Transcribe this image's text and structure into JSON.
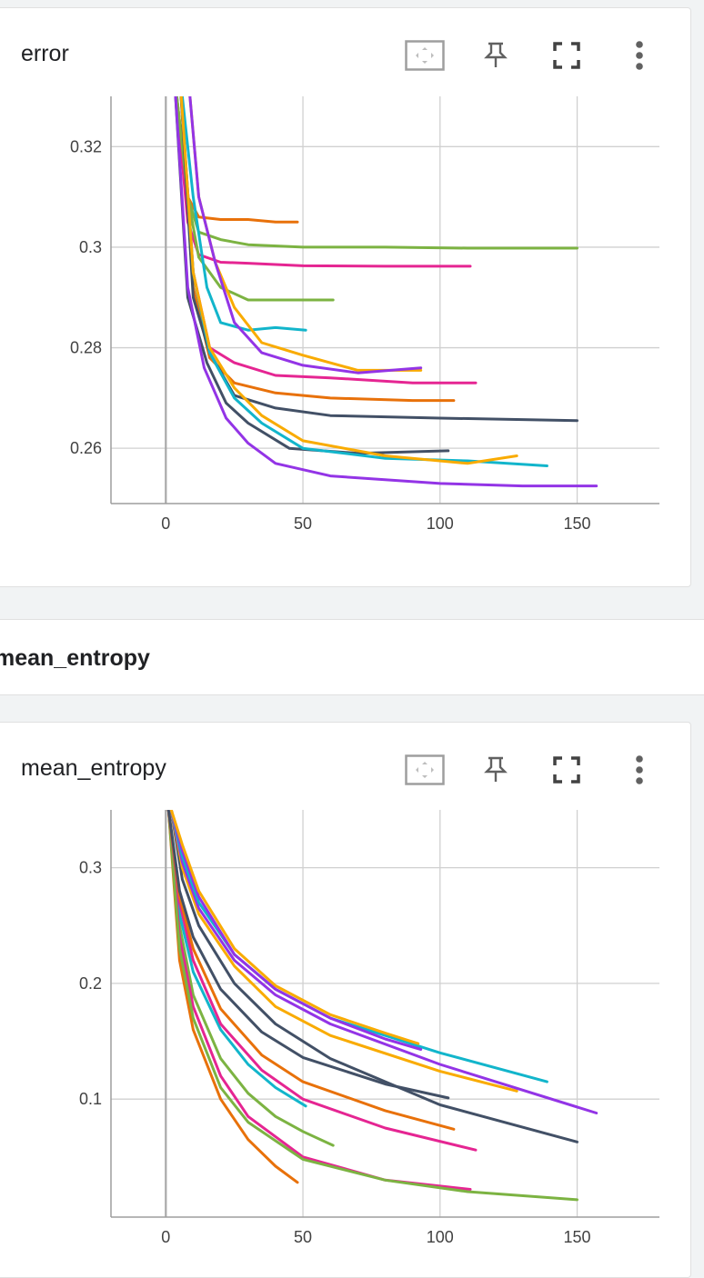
{
  "cards": [
    {
      "title": "error",
      "icons": [
        "fit-domain-icon",
        "pin-icon",
        "fullscreen-icon",
        "more-vert-icon"
      ]
    },
    {
      "title": "mean_entropy",
      "icons": [
        "fit-domain-icon",
        "pin-icon",
        "fullscreen-icon",
        "more-vert-icon"
      ]
    }
  ],
  "section": {
    "title": "mean_entropy"
  },
  "colors": {
    "orange": "#e8710a",
    "green": "#7cb342",
    "magenta": "#e52592",
    "cyan": "#12b5cb",
    "yellow": "#f9ab00",
    "purple": "#9334e6",
    "navy": "#425066"
  },
  "chart_data": [
    {
      "type": "line",
      "title": "error",
      "xlim": [
        -20,
        180
      ],
      "ylim": [
        0.249,
        0.33
      ],
      "xticks": [
        0,
        50,
        100,
        150
      ],
      "yticks": [
        0.26,
        0.28,
        0.3,
        0.32
      ],
      "xtick_labels": [
        "0",
        "50",
        "100",
        "150"
      ],
      "ytick_labels": [
        "0.26",
        "0.28",
        "0.3",
        "0.32"
      ],
      "grid": true,
      "series": [
        {
          "color": "orange",
          "x": [
            3,
            8,
            12,
            20,
            30,
            40,
            48
          ],
          "y": [
            0.335,
            0.31,
            0.306,
            0.3055,
            0.3055,
            0.305,
            0.305
          ]
        },
        {
          "color": "green",
          "x": [
            3,
            8,
            12,
            20,
            30,
            50,
            80,
            110,
            150
          ],
          "y": [
            0.335,
            0.31,
            0.303,
            0.3015,
            0.3005,
            0.3,
            0.3,
            0.2998,
            0.2998
          ]
        },
        {
          "color": "magenta",
          "x": [
            3,
            8,
            12,
            20,
            30,
            50,
            80,
            111
          ],
          "y": [
            0.335,
            0.305,
            0.2985,
            0.297,
            0.2968,
            0.2963,
            0.2962,
            0.2962
          ]
        },
        {
          "color": "green",
          "x": [
            3,
            8,
            12,
            20,
            30,
            45,
            61
          ],
          "y": [
            0.335,
            0.31,
            0.298,
            0.292,
            0.2895,
            0.2895,
            0.2895
          ]
        },
        {
          "color": "cyan",
          "x": [
            5,
            10,
            15,
            20,
            30,
            40,
            51
          ],
          "y": [
            0.335,
            0.31,
            0.292,
            0.285,
            0.2835,
            0.284,
            0.2835
          ]
        },
        {
          "color": "yellow",
          "x": [
            8,
            12,
            18,
            25,
            35,
            50,
            70,
            85,
            93
          ],
          "y": [
            0.335,
            0.31,
            0.297,
            0.288,
            0.281,
            0.2785,
            0.2755,
            0.2755,
            0.2755
          ]
        },
        {
          "color": "purple",
          "x": [
            8,
            12,
            18,
            25,
            35,
            50,
            70,
            93
          ],
          "y": [
            0.335,
            0.31,
            0.297,
            0.285,
            0.279,
            0.2765,
            0.275,
            0.276
          ]
        },
        {
          "color": "magenta",
          "x": [
            5,
            10,
            16,
            25,
            40,
            60,
            90,
            113
          ],
          "y": [
            0.335,
            0.295,
            0.28,
            0.277,
            0.2745,
            0.274,
            0.273,
            0.273
          ]
        },
        {
          "color": "orange",
          "x": [
            5,
            10,
            16,
            25,
            40,
            60,
            90,
            105
          ],
          "y": [
            0.335,
            0.292,
            0.278,
            0.273,
            0.271,
            0.27,
            0.2695,
            0.2695
          ]
        },
        {
          "color": "navy",
          "x": [
            5,
            10,
            16,
            25,
            40,
            60,
            100,
            150
          ],
          "y": [
            0.335,
            0.29,
            0.279,
            0.2705,
            0.268,
            0.2665,
            0.266,
            0.2655
          ]
        },
        {
          "color": "navy",
          "x": [
            3,
            8,
            15,
            22,
            30,
            45,
            70,
            103
          ],
          "y": [
            0.335,
            0.29,
            0.277,
            0.269,
            0.265,
            0.26,
            0.259,
            0.2595
          ]
        },
        {
          "color": "cyan",
          "x": [
            5,
            10,
            16,
            25,
            35,
            50,
            80,
            110,
            139
          ],
          "y": [
            0.335,
            0.295,
            0.279,
            0.27,
            0.265,
            0.26,
            0.258,
            0.2575,
            0.2565
          ]
        },
        {
          "color": "yellow",
          "x": [
            5,
            10,
            16,
            25,
            35,
            50,
            80,
            110,
            128
          ],
          "y": [
            0.335,
            0.295,
            0.28,
            0.272,
            0.2665,
            0.2615,
            0.2585,
            0.257,
            0.2585
          ]
        },
        {
          "color": "purple",
          "x": [
            3,
            8,
            14,
            22,
            30,
            40,
            60,
            100,
            130,
            157
          ],
          "y": [
            0.335,
            0.292,
            0.276,
            0.266,
            0.261,
            0.257,
            0.2545,
            0.253,
            0.2525,
            0.2525
          ]
        }
      ]
    },
    {
      "type": "line",
      "title": "mean_entropy",
      "xlim": [
        -20,
        180
      ],
      "ylim": [
        -0.002,
        0.35
      ],
      "xticks": [
        0,
        50,
        100,
        150
      ],
      "yticks": [
        0.1,
        0.2,
        0.3
      ],
      "xtick_labels": [
        "0",
        "50",
        "100",
        "150"
      ],
      "ytick_labels": [
        "0.1",
        "0.2",
        "0.3"
      ],
      "grid": true,
      "series": [
        {
          "color": "orange",
          "x": [
            1,
            5,
            10,
            20,
            30,
            40,
            48
          ],
          "y": [
            0.35,
            0.22,
            0.16,
            0.1,
            0.065,
            0.042,
            0.028
          ]
        },
        {
          "color": "green",
          "x": [
            1,
            5,
            10,
            20,
            30,
            40,
            50,
            61
          ],
          "y": [
            0.35,
            0.25,
            0.19,
            0.135,
            0.105,
            0.085,
            0.072,
            0.06
          ]
        },
        {
          "color": "cyan",
          "x": [
            1,
            5,
            10,
            20,
            30,
            40,
            51
          ],
          "y": [
            0.35,
            0.26,
            0.21,
            0.16,
            0.13,
            0.11,
            0.094
          ]
        },
        {
          "color": "magenta",
          "x": [
            1,
            5,
            10,
            20,
            30,
            50,
            80,
            111
          ],
          "y": [
            0.35,
            0.24,
            0.18,
            0.12,
            0.085,
            0.05,
            0.03,
            0.022
          ]
        },
        {
          "color": "green",
          "x": [
            1,
            5,
            10,
            20,
            30,
            50,
            80,
            110,
            150
          ],
          "y": [
            0.35,
            0.23,
            0.17,
            0.11,
            0.08,
            0.048,
            0.03,
            0.02,
            0.013
          ]
        },
        {
          "color": "magenta",
          "x": [
            1,
            5,
            10,
            20,
            35,
            50,
            80,
            113
          ],
          "y": [
            0.35,
            0.27,
            0.22,
            0.165,
            0.125,
            0.1,
            0.075,
            0.056
          ]
        },
        {
          "color": "orange",
          "x": [
            1,
            5,
            10,
            20,
            35,
            50,
            80,
            105
          ],
          "y": [
            0.35,
            0.275,
            0.23,
            0.178,
            0.138,
            0.115,
            0.09,
            0.074
          ]
        },
        {
          "color": "navy",
          "x": [
            1,
            5,
            10,
            20,
            35,
            50,
            80,
            103
          ],
          "y": [
            0.35,
            0.28,
            0.24,
            0.195,
            0.158,
            0.136,
            0.113,
            0.101
          ]
        },
        {
          "color": "navy",
          "x": [
            2,
            6,
            12,
            25,
            40,
            60,
            100,
            150
          ],
          "y": [
            0.35,
            0.29,
            0.25,
            0.2,
            0.165,
            0.135,
            0.095,
            0.063
          ]
        },
        {
          "color": "yellow",
          "x": [
            2,
            6,
            12,
            25,
            40,
            60,
            100,
            128
          ],
          "y": [
            0.35,
            0.3,
            0.26,
            0.215,
            0.18,
            0.155,
            0.124,
            0.107
          ]
        },
        {
          "color": "purple",
          "x": [
            2,
            6,
            12,
            25,
            40,
            60,
            100,
            157
          ],
          "y": [
            0.35,
            0.305,
            0.265,
            0.22,
            0.19,
            0.165,
            0.13,
            0.088
          ]
        },
        {
          "color": "cyan",
          "x": [
            2,
            6,
            12,
            25,
            40,
            60,
            100,
            139
          ],
          "y": [
            0.35,
            0.31,
            0.27,
            0.225,
            0.195,
            0.17,
            0.14,
            0.115
          ]
        },
        {
          "color": "purple",
          "x": [
            2,
            6,
            12,
            25,
            40,
            60,
            80,
            93
          ],
          "y": [
            0.35,
            0.315,
            0.275,
            0.225,
            0.195,
            0.17,
            0.152,
            0.143
          ]
        },
        {
          "color": "yellow",
          "x": [
            2,
            6,
            12,
            25,
            40,
            60,
            80,
            92
          ],
          "y": [
            0.35,
            0.32,
            0.28,
            0.23,
            0.198,
            0.173,
            0.157,
            0.148
          ]
        }
      ]
    }
  ]
}
